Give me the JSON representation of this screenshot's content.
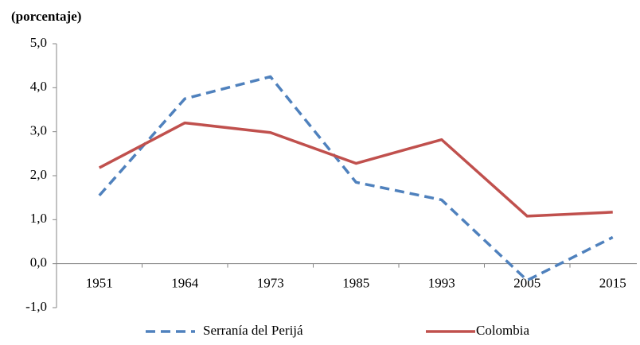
{
  "chart_data": {
    "type": "line",
    "title": "(porcentaje)",
    "categories": [
      "1951",
      "1964",
      "1973",
      "1985",
      "1993",
      "2005",
      "2015"
    ],
    "series": [
      {
        "name": "Serranía del Perijá",
        "color": "#4f81bd",
        "dashed": true,
        "values": [
          1.55,
          3.75,
          4.25,
          1.85,
          1.45,
          -0.38,
          0.6
        ]
      },
      {
        "name": "Colombia",
        "color": "#c0504d",
        "dashed": false,
        "values": [
          2.18,
          3.2,
          2.98,
          2.28,
          2.82,
          1.08,
          1.17
        ]
      }
    ],
    "ylim": [
      -1,
      5
    ],
    "yticks": [
      {
        "value": -1,
        "label": "-1,0"
      },
      {
        "value": 0,
        "label": "0,0"
      },
      {
        "value": 1,
        "label": "1,0"
      },
      {
        "value": 2,
        "label": "2,0"
      },
      {
        "value": 3,
        "label": "3,0"
      },
      {
        "value": 4,
        "label": "4,0"
      },
      {
        "value": 5,
        "label": "5,0"
      }
    ],
    "legend": "bottom"
  }
}
